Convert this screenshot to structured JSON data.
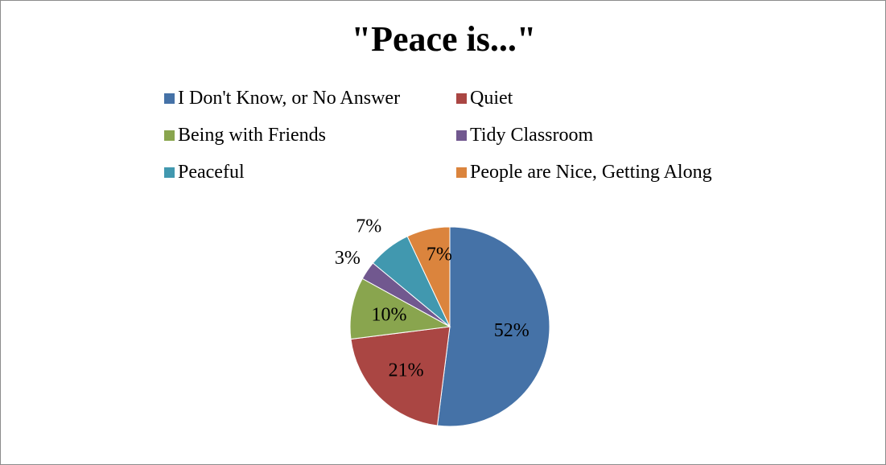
{
  "chart_data": {
    "type": "pie",
    "title": "\"Peace is...\"",
    "legend_position": "top",
    "slices": [
      {
        "name": "I Don't Know, or No Answer",
        "value": 52,
        "label": "52%",
        "color": "#4572A7"
      },
      {
        "name": "Quiet",
        "value": 21,
        "label": "21%",
        "color": "#AA4643"
      },
      {
        "name": "Being with Friends",
        "value": 10,
        "label": "10%",
        "color": "#89A54E"
      },
      {
        "name": "Tidy Classroom",
        "value": 3,
        "label": "3%",
        "color": "#71588F"
      },
      {
        "name": "Peaceful",
        "value": 7,
        "label": "7%",
        "color": "#4198AF"
      },
      {
        "name": "People are Nice, Getting Along",
        "value": 7,
        "label": "7%",
        "color": "#DB843D"
      }
    ]
  }
}
